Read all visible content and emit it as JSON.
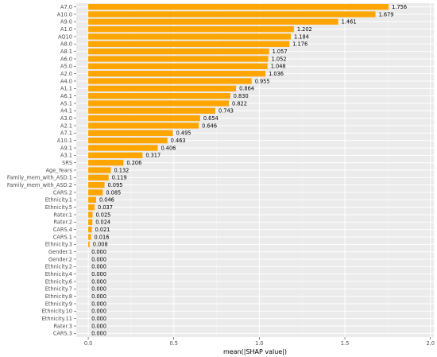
{
  "chart_data": {
    "type": "bar",
    "orientation": "horizontal",
    "title": "",
    "xlabel": "mean(|SHAP value|)",
    "ylabel": "",
    "xlim": [
      -0.07,
      2.02
    ],
    "xticks": [
      0.0,
      0.5,
      1.0,
      1.5,
      2.0
    ],
    "xtick_labels": [
      "0.0",
      "0.5",
      "1.0",
      "1.5",
      "2.0"
    ],
    "grid": true,
    "legend": "none",
    "bar_color": "#FFA500",
    "panel_color": "#EBEBEB",
    "categories": [
      "A7.0",
      "A10.0",
      "A9.0",
      "A1.0",
      "AQ10",
      "A8.0",
      "A8.1",
      "A6.0",
      "A5.0",
      "A2.0",
      "A4.0",
      "A1.1",
      "A6.1",
      "A5.1",
      "A4.1",
      "A3.0",
      "A2.1",
      "A7.1",
      "A10.1",
      "A9.1",
      "A3.1",
      "SRS",
      "Age_Years",
      "Family_mem_with_ASD.1",
      "Family_mem_with_ASD.2",
      "CARS.2",
      "Ethnicity.1",
      "Ethnicity.5",
      "Rater.1",
      "Rater.2",
      "CARS.4",
      "CARS.1",
      "Ethnicity.3",
      "Gender.1",
      "Gender.2",
      "Ethnicity.2",
      "Ethnicity.4",
      "Ethnicity.6",
      "Ethnicity.7",
      "Ethnicity.8",
      "Ethnicity.9",
      "Ethnicity.10",
      "Ethnicity.11",
      "Rater.3",
      "CARS.3"
    ],
    "values": [
      1.756,
      1.679,
      1.461,
      1.202,
      1.184,
      1.176,
      1.057,
      1.052,
      1.048,
      1.036,
      0.955,
      0.864,
      0.83,
      0.822,
      0.743,
      0.654,
      0.646,
      0.495,
      0.463,
      0.406,
      0.317,
      0.206,
      0.132,
      0.119,
      0.095,
      0.085,
      0.046,
      0.037,
      0.025,
      0.024,
      0.021,
      0.016,
      0.008,
      0.0,
      0.0,
      0.0,
      0.0,
      0.0,
      0.0,
      0.0,
      0.0,
      0.0,
      0.0,
      0.0,
      0.0
    ],
    "value_labels": [
      "1.756",
      "1.679",
      "1.461",
      "1.202",
      "1.184",
      "1.176",
      "1.057",
      "1.052",
      "1.048",
      "1.036",
      "0.955",
      "0.864",
      "0.830",
      "0.822",
      "0.743",
      "0.654",
      "0.646",
      "0.495",
      "0.463",
      "0.406",
      "0.317",
      "0.206",
      "0.132",
      "0.119",
      "0.095",
      "0.085",
      "0.046",
      "0.037",
      "0.025",
      "0.024",
      "0.021",
      "0.016",
      "0.008",
      "0.000",
      "0.000",
      "0.000",
      "0.000",
      "0.000",
      "0.000",
      "0.000",
      "0.000",
      "0.000",
      "0.000",
      "0.000",
      "0.000"
    ]
  }
}
